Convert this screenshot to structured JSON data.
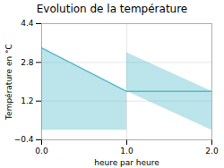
{
  "chart_data": {
    "type": "area",
    "title": "Evolution de la température",
    "xlabel": "heure par heure",
    "ylabel": "Température en °C",
    "x": [
      0,
      1,
      1,
      2
    ],
    "values": [
      3.4,
      1.6,
      1.6,
      1.6
    ],
    "color": "#55bbcc",
    "xlim": [
      0,
      2
    ],
    "ylim": [
      -0.4,
      4.4
    ],
    "xticks": [
      0,
      1,
      2
    ],
    "yticks": [
      -0.4,
      1.2,
      2.8,
      4.4
    ],
    "grid": true
  }
}
